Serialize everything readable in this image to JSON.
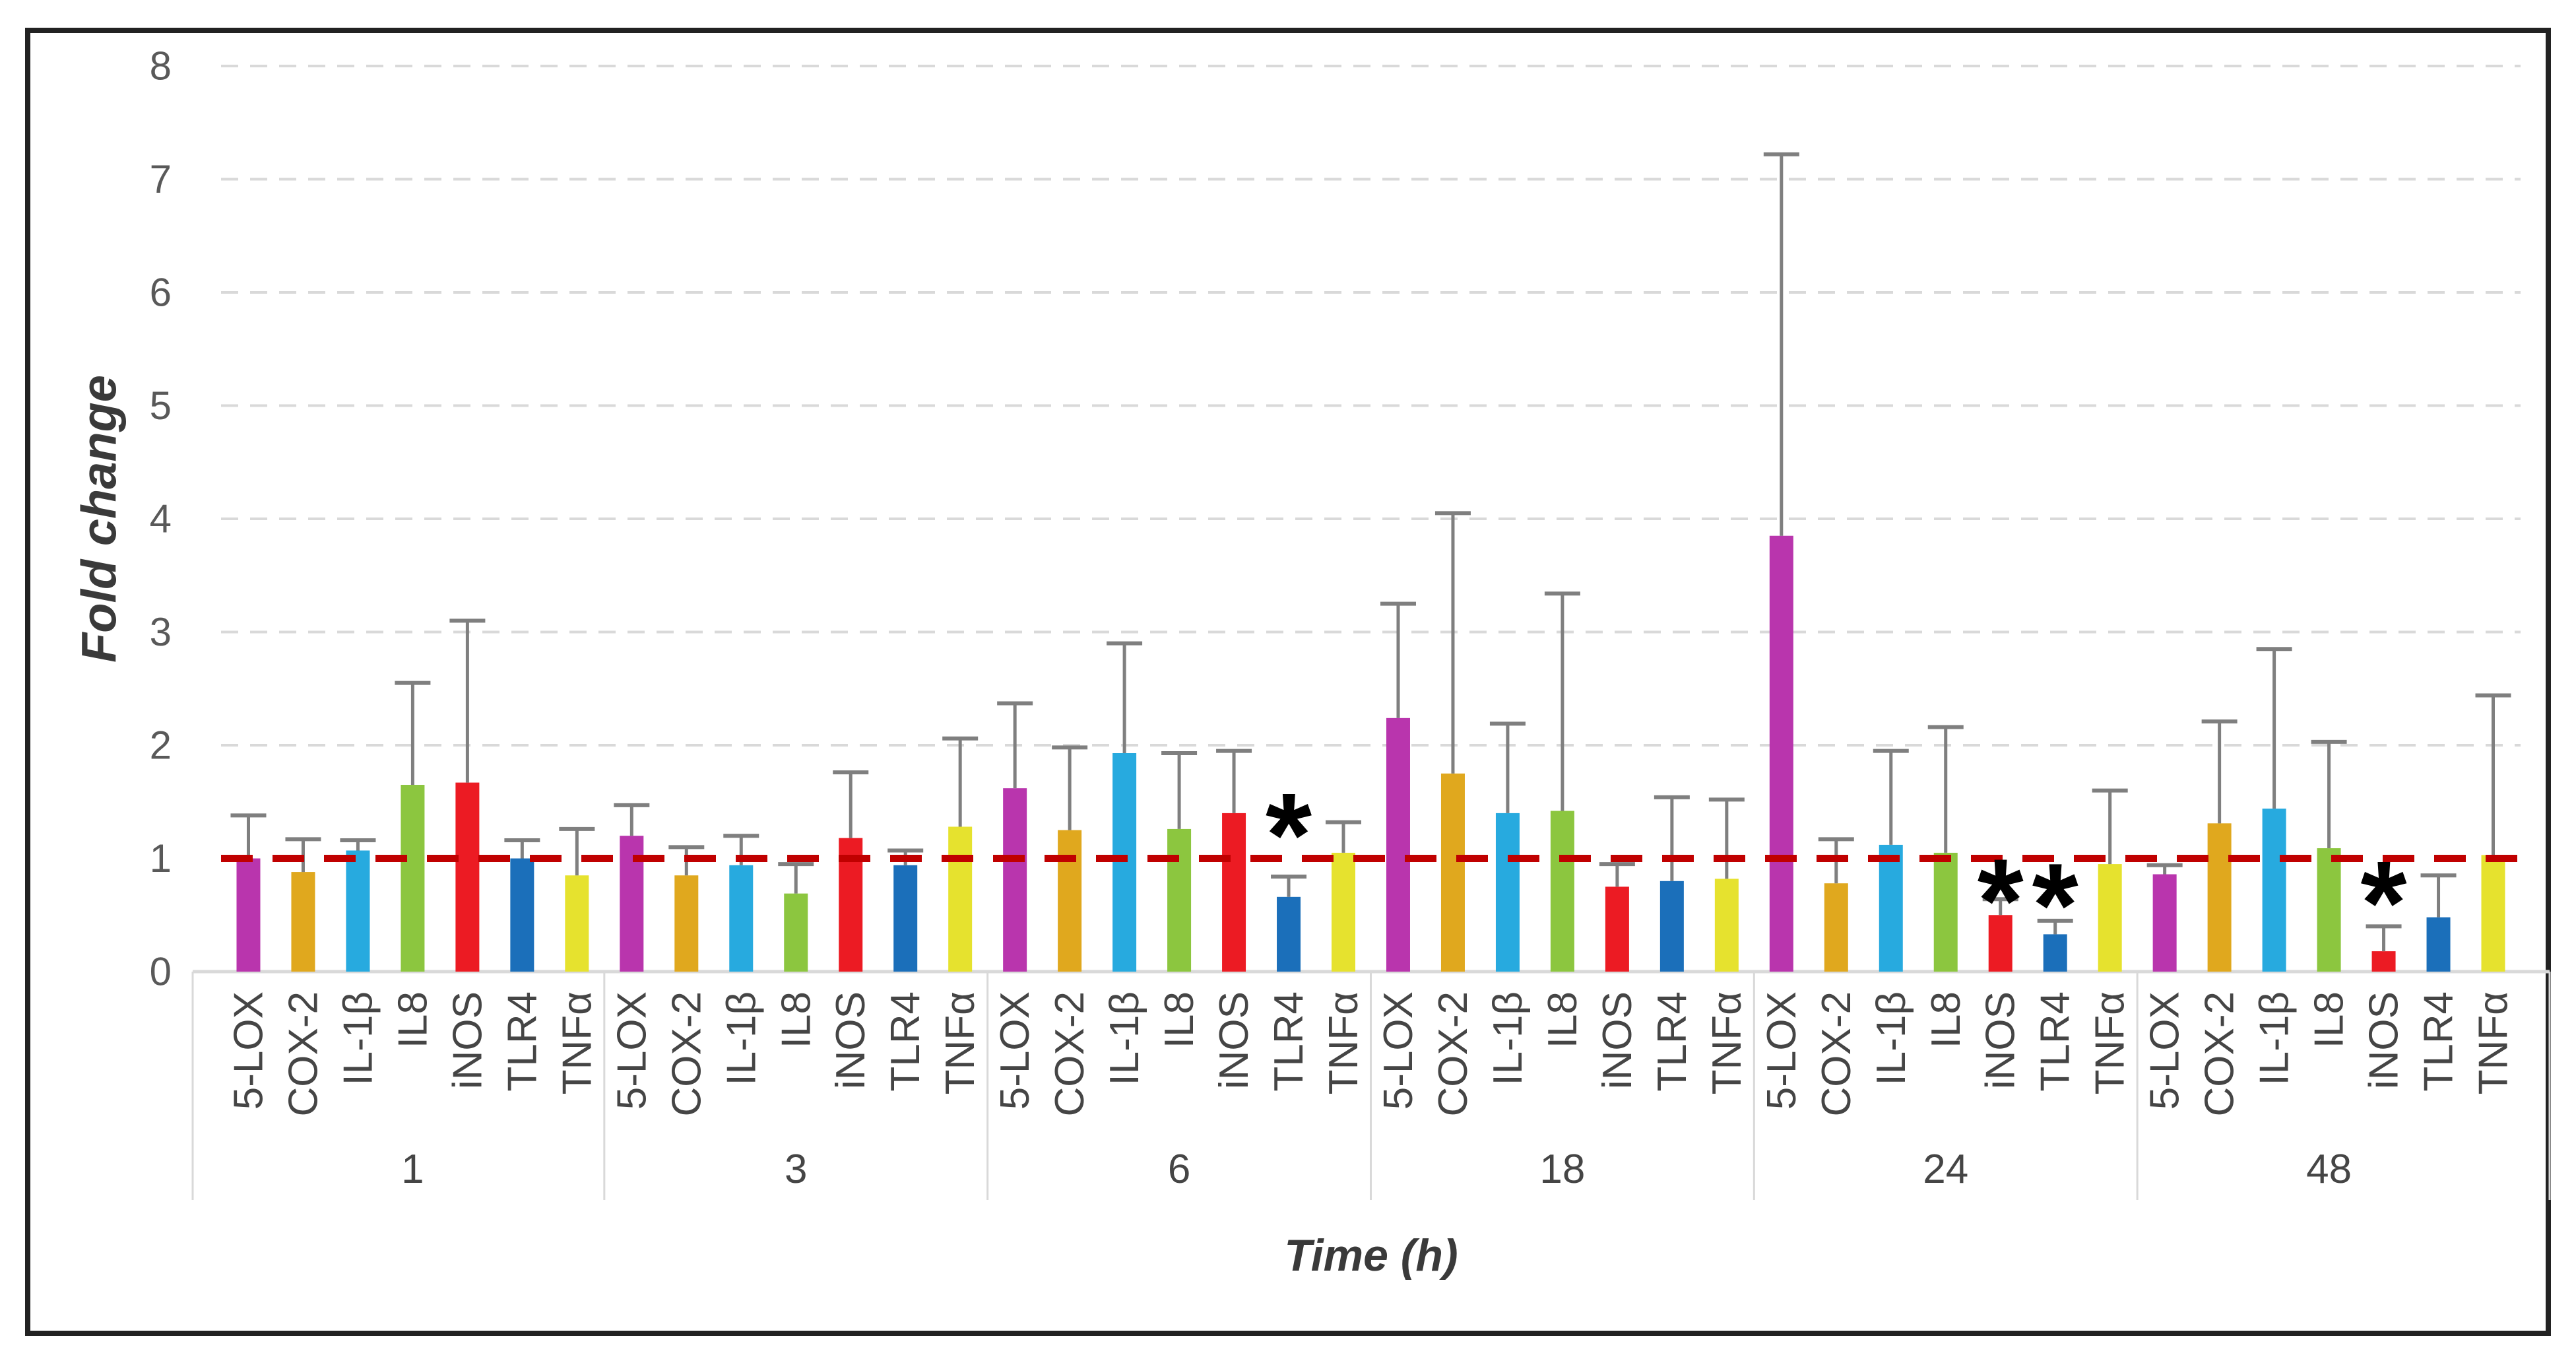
{
  "figure": {
    "background": "#ffffff",
    "frame_color": "#222222"
  },
  "chart_data": {
    "type": "bar",
    "title": "",
    "ylabel": "Fold change",
    "xlabel": "Time (h)",
    "ylim": [
      0,
      8
    ],
    "ytick_values": [
      0,
      1,
      2,
      3,
      4,
      5,
      6,
      7,
      8
    ],
    "grid": "horizontal-dashed",
    "legend": "none",
    "grid_color": "#d9d9d9",
    "axis_text_color": "#595959",
    "category_text_color": "#454545",
    "error_bar_color": "#7f7f7f",
    "significance_marker": "*",
    "significance_color": "#000000",
    "reference_line": {
      "value": 1,
      "color": "#c00000",
      "style": "dashed"
    },
    "series_labels": [
      "5-LOX",
      "COX-2",
      "IL-1β",
      "IL8",
      "iNOS",
      "TLR4",
      "TNFα"
    ],
    "series_colors": [
      "#b935ad",
      "#e0a81e",
      "#27aadf",
      "#8cc63f",
      "#ec1b23",
      "#1b6fba",
      "#e6e22e"
    ],
    "categories": [
      "1",
      "3",
      "6",
      "18",
      "24",
      "48"
    ],
    "groups": [
      {
        "time": "1",
        "values": [
          1.0,
          0.88,
          1.07,
          1.65,
          1.67,
          1.0,
          0.85
        ],
        "errors": [
          1.38,
          1.17,
          1.16,
          2.55,
          3.1,
          1.16,
          1.26
        ]
      },
      {
        "time": "3",
        "values": [
          1.2,
          0.85,
          0.94,
          0.69,
          1.18,
          0.94,
          1.28
        ],
        "errors": [
          1.47,
          1.1,
          1.2,
          0.95,
          1.76,
          1.07,
          2.06
        ]
      },
      {
        "time": "6",
        "values": [
          1.62,
          1.25,
          1.93,
          1.26,
          1.4,
          0.66,
          1.05
        ],
        "errors": [
          2.37,
          1.98,
          2.9,
          1.93,
          1.95,
          0.84,
          1.32
        ]
      },
      {
        "time": "18",
        "values": [
          2.24,
          1.75,
          1.4,
          1.42,
          0.75,
          0.8,
          0.82
        ],
        "errors": [
          3.25,
          4.05,
          2.19,
          3.34,
          0.95,
          1.54,
          1.52
        ]
      },
      {
        "time": "24",
        "values": [
          3.85,
          0.78,
          1.12,
          1.05,
          0.5,
          0.33,
          0.95
        ],
        "errors": [
          7.22,
          1.17,
          1.95,
          2.16,
          0.64,
          0.45,
          1.6
        ]
      },
      {
        "time": "48",
        "values": [
          0.86,
          1.31,
          1.44,
          1.09,
          0.18,
          0.48,
          1.03
        ],
        "errors": [
          0.94,
          2.21,
          2.85,
          2.03,
          0.4,
          0.85,
          2.44
        ]
      }
    ],
    "significance": [
      {
        "time": "6",
        "gene": "TLR4",
        "y": 1.4
      },
      {
        "time": "24",
        "gene": "iNOS",
        "y": 0.82
      },
      {
        "time": "24",
        "gene": "TLR4",
        "y": 0.78
      },
      {
        "time": "48",
        "gene": "iNOS",
        "y": 0.8
      }
    ]
  }
}
